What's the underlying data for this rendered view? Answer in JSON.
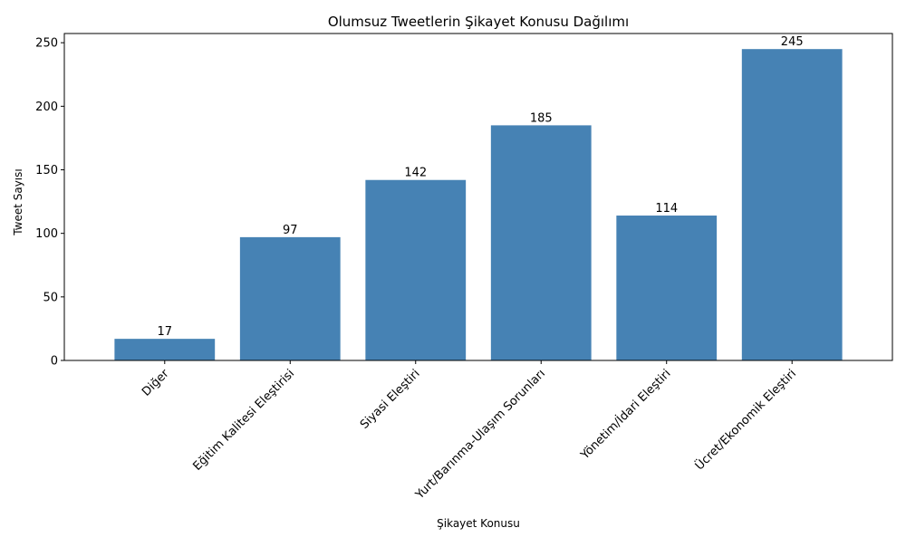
{
  "chart_data": {
    "type": "bar",
    "title": "Olumsuz Tweetlerin Şikayet Konusu Dağılımı",
    "xlabel": "Şikayet Konusu",
    "ylabel": "Tweet Sayısı",
    "categories": [
      "Diğer",
      "Eğitim Kalitesi Eleştirisi",
      "Siyasi Eleştiri",
      "Yurt/Barınma-Ulaşım Sorunları",
      "Yönetim/İdari Eleştiri",
      "Ücret/Ekonomik Eleştiri"
    ],
    "values": [
      17,
      97,
      142,
      185,
      114,
      245
    ],
    "data_labels": [
      "17",
      "97",
      "142",
      "185",
      "114",
      "245"
    ],
    "ylim": [
      0,
      257.25
    ],
    "yticks": [
      0,
      50,
      100,
      150,
      200,
      250
    ],
    "ytick_labels": [
      "0",
      "50",
      "100",
      "150",
      "200",
      "250"
    ],
    "bar_color": "#4682b4",
    "grid": false,
    "legend": "none"
  }
}
